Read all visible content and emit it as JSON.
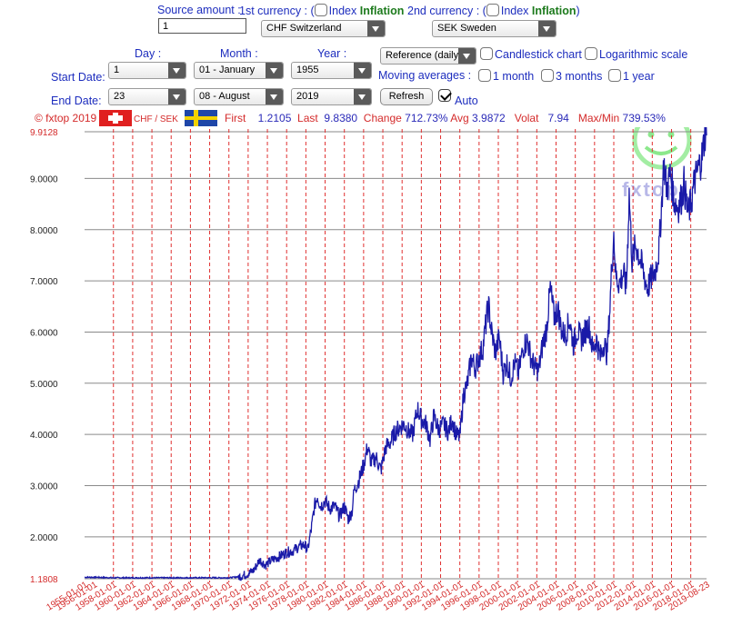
{
  "form": {
    "source_amount_label": "Source amount :",
    "source_amount_value": "1",
    "first_currency_label": "1st currency : (",
    "index_label": "Index",
    "inflation_label": "Inflation",
    "close_paren": ")",
    "second_currency_label": "2nd currency : (",
    "first_currency_value": "CHF Switzerland",
    "second_currency_value": "SEK Sweden",
    "day_label": "Day :",
    "month_label": "Month :",
    "year_label": "Year :",
    "start_date_label": "Start Date:",
    "end_date_label": "End Date:",
    "start_day": "1",
    "start_month": "01 - January",
    "start_year": "1955",
    "end_day": "23",
    "end_month": "08 - August",
    "end_year": "2019",
    "reference_select": "Reference (daily)",
    "candlestick_label": "Candlestick chart",
    "log_scale_label": "Logarithmic scale",
    "moving_averages_label": "Moving averages :",
    "ma_1_month": "1 month",
    "ma_3_months": "3 months",
    "ma_1_year": "1 year",
    "refresh_label": "Refresh",
    "auto_label": "Auto",
    "auto_checked": true
  },
  "info_bar": {
    "copyright": "© fxtop 2019",
    "pair": "CHF / SEK",
    "first_label": "First",
    "first_value": "1.2105",
    "last_label": "Last",
    "last_value": "9.8380",
    "change_label": "Change",
    "change_value": "712.73%",
    "avg_label": "Avg",
    "avg_value": "3.9872",
    "volat_label": "Volat",
    "volat_value": "7.94",
    "maxmin_label": "Max/Min",
    "maxmin_value": "739.53%"
  },
  "colors": {
    "line": "#1a1aa8",
    "grid_vertical": "#e03030",
    "grid_horizontal": "#8a8a8a",
    "label_red": "#d42a2a",
    "label_blue": "#1d2dbe",
    "watermark": "#7fe07f"
  },
  "icons": {
    "flag_ch": "swiss-flag-icon",
    "flag_se": "swedish-flag-icon",
    "watermark": "fxtop-smiley-logo"
  },
  "watermark_text": "fxtop",
  "chart_data": {
    "type": "line",
    "ylim": [
      1.1808,
      9.9128
    ],
    "y_ticks": [
      1.1808,
      2.0,
      3.0,
      4.0,
      5.0,
      6.0,
      7.0,
      8.0,
      9.0,
      9.9128
    ],
    "y_tick_labels": [
      "1.1808",
      "2.0000",
      "3.0000",
      "4.0000",
      "5.0000",
      "6.0000",
      "7.0000",
      "8.0000",
      "9.0000",
      "9.9128"
    ],
    "x_tick_labels": [
      "1955-01-01",
      "1956-01-01",
      "1958-01-01",
      "1960-01-01",
      "1962-01-01",
      "1964-01-01",
      "1966-01-01",
      "1968-01-01",
      "1970-01-01",
      "1972-01-01",
      "1974-01-01",
      "1976-01-01",
      "1978-01-01",
      "1980-01-01",
      "1982-01-01",
      "1984-01-01",
      "1986-01-01",
      "1988-01-01",
      "1990-01-01",
      "1992-01-01",
      "1994-01-01",
      "1996-01-01",
      "1998-01-01",
      "2000-01-01",
      "2002-01-01",
      "2004-01-01",
      "2006-01-01",
      "2008-01-01",
      "2010-01-01",
      "2012-01-01",
      "2014-01-01",
      "2016-01-01",
      "2018-01-01",
      "2019-08-23"
    ],
    "x_range": [
      1955.0,
      2019.64
    ],
    "grid": true,
    "series": [
      {
        "points": [
          [
            1955.0,
            1.21
          ],
          [
            1956.0,
            1.21
          ],
          [
            1958.0,
            1.2
          ],
          [
            1960.0,
            1.2
          ],
          [
            1962.0,
            1.2
          ],
          [
            1964.0,
            1.2
          ],
          [
            1966.0,
            1.2
          ],
          [
            1968.0,
            1.2
          ],
          [
            1970.0,
            1.2
          ],
          [
            1971.0,
            1.22
          ],
          [
            1972.0,
            1.28
          ],
          [
            1972.6,
            1.35
          ],
          [
            1973.2,
            1.55
          ],
          [
            1973.8,
            1.45
          ],
          [
            1974.5,
            1.55
          ],
          [
            1975.3,
            1.62
          ],
          [
            1976.0,
            1.7
          ],
          [
            1976.6,
            1.72
          ],
          [
            1977.2,
            1.8
          ],
          [
            1977.8,
            1.85
          ],
          [
            1978.2,
            1.75
          ],
          [
            1978.6,
            2.2
          ],
          [
            1978.9,
            2.6
          ],
          [
            1979.2,
            2.8
          ],
          [
            1979.5,
            2.6
          ],
          [
            1980.0,
            2.7
          ],
          [
            1980.5,
            2.55
          ],
          [
            1981.0,
            2.6
          ],
          [
            1981.5,
            2.4
          ],
          [
            1982.0,
            2.6
          ],
          [
            1982.4,
            2.35
          ],
          [
            1982.8,
            2.5
          ],
          [
            1983.0,
            2.9
          ],
          [
            1983.5,
            3.1
          ],
          [
            1984.0,
            3.4
          ],
          [
            1984.4,
            3.75
          ],
          [
            1984.8,
            3.45
          ],
          [
            1985.3,
            3.55
          ],
          [
            1985.8,
            3.3
          ],
          [
            1986.3,
            3.75
          ],
          [
            1986.8,
            3.85
          ],
          [
            1987.3,
            4.05
          ],
          [
            1987.8,
            4.15
          ],
          [
            1988.2,
            4.2
          ],
          [
            1988.7,
            4.05
          ],
          [
            1989.1,
            4.0
          ],
          [
            1989.6,
            4.5
          ],
          [
            1990.0,
            4.3
          ],
          [
            1990.5,
            4.2
          ],
          [
            1990.9,
            3.9
          ],
          [
            1991.3,
            4.35
          ],
          [
            1991.8,
            4.1
          ],
          [
            1992.3,
            4.2
          ],
          [
            1992.8,
            4.05
          ],
          [
            1993.2,
            4.3
          ],
          [
            1993.6,
            4.0
          ],
          [
            1994.0,
            3.95
          ],
          [
            1994.4,
            4.8
          ],
          [
            1994.8,
            5.0
          ],
          [
            1995.2,
            5.5
          ],
          [
            1995.6,
            5.3
          ],
          [
            1996.0,
            5.5
          ],
          [
            1996.4,
            5.7
          ],
          [
            1996.8,
            6.3
          ],
          [
            1997.0,
            6.5
          ],
          [
            1997.3,
            6.0
          ],
          [
            1997.7,
            5.6
          ],
          [
            1998.1,
            5.9
          ],
          [
            1998.5,
            5.2
          ],
          [
            1998.9,
            5.4
          ],
          [
            1999.3,
            5.1
          ],
          [
            1999.7,
            5.4
          ],
          [
            2000.1,
            5.2
          ],
          [
            2000.6,
            5.7
          ],
          [
            2001.0,
            5.85
          ],
          [
            2001.4,
            5.5
          ],
          [
            2001.8,
            5.3
          ],
          [
            2002.2,
            5.25
          ],
          [
            2002.6,
            5.75
          ],
          [
            2003.0,
            6.05
          ],
          [
            2003.4,
            6.85
          ],
          [
            2003.8,
            6.3
          ],
          [
            2004.2,
            6.45
          ],
          [
            2004.6,
            6.0
          ],
          [
            2005.0,
            5.95
          ],
          [
            2005.4,
            6.25
          ],
          [
            2005.8,
            5.75
          ],
          [
            2006.2,
            6.05
          ],
          [
            2006.6,
            5.85
          ],
          [
            2007.0,
            6.0
          ],
          [
            2007.4,
            6.15
          ],
          [
            2007.8,
            5.65
          ],
          [
            2008.2,
            5.85
          ],
          [
            2008.6,
            5.5
          ],
          [
            2009.0,
            5.8
          ],
          [
            2009.3,
            5.55
          ],
          [
            2009.6,
            6.5
          ],
          [
            2009.8,
            7.3
          ],
          [
            2010.0,
            7.95
          ],
          [
            2010.2,
            7.1
          ],
          [
            2010.6,
            6.95
          ],
          [
            2011.0,
            7.15
          ],
          [
            2011.3,
            6.85
          ],
          [
            2011.6,
            8.7
          ],
          [
            2011.9,
            7.4
          ],
          [
            2012.3,
            7.7
          ],
          [
            2012.7,
            7.45
          ],
          [
            2013.1,
            7.15
          ],
          [
            2013.5,
            6.85
          ],
          [
            2013.9,
            7.05
          ],
          [
            2014.3,
            7.2
          ],
          [
            2014.7,
            7.6
          ],
          [
            2015.0,
            8.6
          ],
          [
            2015.2,
            9.3
          ],
          [
            2015.5,
            8.8
          ],
          [
            2015.9,
            9.1
          ],
          [
            2016.3,
            8.55
          ],
          [
            2016.7,
            8.45
          ],
          [
            2017.0,
            8.6
          ],
          [
            2017.3,
            8.9
          ],
          [
            2017.7,
            8.3
          ],
          [
            2018.0,
            8.5
          ],
          [
            2018.4,
            8.95
          ],
          [
            2018.8,
            9.2
          ],
          [
            2019.2,
            9.45
          ],
          [
            2019.5,
            9.9
          ],
          [
            2019.64,
            9.84
          ]
        ]
      }
    ]
  }
}
